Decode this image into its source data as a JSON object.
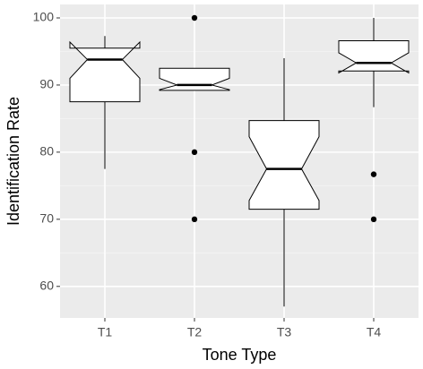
{
  "chart_data": {
    "type": "boxplot",
    "x_label": "Tone Type",
    "y_label": "Identification Rate",
    "categories": [
      "T1",
      "T2",
      "T3",
      "T4"
    ],
    "boxes": [
      {
        "whisker_low": 77.5,
        "q1": 87.5,
        "notch_low": 91,
        "median": 93.8,
        "notch_high": 96.4,
        "q3": 95.5,
        "whisker_high": 97.3,
        "outliers": []
      },
      {
        "whisker_low": 89.2,
        "q1": 89.2,
        "notch_low": 89.3,
        "median": 90,
        "notch_high": 91,
        "q3": 92.5,
        "whisker_high": 92.5,
        "outliers": [
          100,
          80,
          70
        ]
      },
      {
        "whisker_low": 57,
        "q1": 71.5,
        "notch_low": 72.8,
        "median": 77.5,
        "notch_high": 82.3,
        "q3": 84.7,
        "whisker_high": 94,
        "outliers": []
      },
      {
        "whisker_low": 86.7,
        "q1": 92.1,
        "notch_low": 91.8,
        "median": 93.3,
        "notch_high": 94.8,
        "q3": 96.6,
        "whisker_high": 100,
        "outliers": [
          76.7,
          70
        ]
      }
    ],
    "ylim": [
      55.3,
      102
    ],
    "yticks": [
      60,
      70,
      80,
      90,
      100
    ],
    "yticks_minor": [
      65,
      75,
      85,
      95
    ],
    "grid": true,
    "panel_color": "#ebebeb",
    "box_fill": "#ffffff",
    "line_color": "#000000"
  }
}
